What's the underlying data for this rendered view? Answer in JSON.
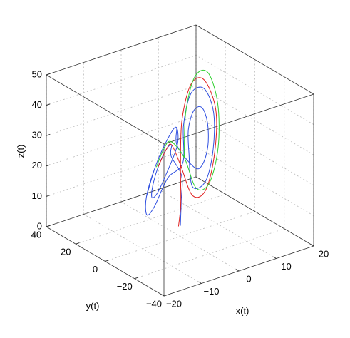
{
  "chart_data": {
    "type": "line3d",
    "xlabel": "x(t)",
    "ylabel": "y(t)",
    "zlabel": "z(t)",
    "xlim": [
      -20,
      20
    ],
    "ylim": [
      -40,
      40
    ],
    "zlim": [
      0,
      50
    ],
    "xticks": [
      {
        "value": -20,
        "label": "−20"
      },
      {
        "value": -10,
        "label": "−10"
      },
      0,
      10,
      20
    ],
    "yticks": [
      {
        "value": -40,
        "label": "−40"
      },
      {
        "value": -20,
        "label": "−20"
      },
      0,
      20,
      40
    ],
    "zticks": [
      0,
      10,
      20,
      30,
      40,
      50
    ],
    "grid": true,
    "series": [
      {
        "color": "#2f4fe0",
        "x": [
          0.5,
          1.5,
          2,
          -2,
          -3.7,
          -8,
          -12.3,
          -14,
          -12.3,
          -8,
          -3.7,
          2,
          -0.9,
          -8,
          -15.1,
          -18,
          -15.1,
          -8,
          -0.9,
          -2,
          0.9,
          8,
          15.1,
          18,
          15.1,
          8,
          0.9,
          2,
          3.7,
          8,
          12.3,
          14,
          12.3,
          8,
          3.7,
          2,
          -0.9,
          -8,
          -15.1,
          -18
        ],
        "y": [
          1,
          3,
          4,
          1,
          -3.7,
          -11,
          -16.5,
          -17,
          -12.3,
          -5,
          0.5,
          7,
          0.1,
          -13,
          -22.2,
          -23,
          -15.9,
          -3,
          6.1,
          -7,
          -0.1,
          13,
          22.2,
          23,
          15.9,
          3,
          -6.1,
          -1,
          3.7,
          11,
          16.5,
          17,
          12.3,
          5,
          -0.5,
          7,
          0.1,
          -13,
          -22.2,
          -23
        ],
        "z": [
          3,
          10,
          18,
          27,
          32.7,
          35,
          32.7,
          27,
          21.3,
          19,
          21.3,
          27,
          36.2,
          40,
          36.2,
          27,
          17.8,
          14,
          17.8,
          27,
          36.2,
          40,
          36.2,
          27,
          17.8,
          14,
          17.8,
          27,
          32.7,
          35,
          32.7,
          27,
          21.3,
          19,
          21.3,
          27,
          36.2,
          40,
          36.2,
          27
        ]
      },
      {
        "color": "#e02020",
        "x": [
          0,
          1,
          -3,
          0.2,
          8,
          15.8,
          19,
          15.8,
          8,
          0.2,
          -3,
          -3.7,
          -8,
          -12.3
        ],
        "y": [
          1,
          2,
          -8,
          -0.8,
          13,
          23.9,
          24,
          16.8,
          3,
          -7.9,
          -8,
          -3.7,
          -11,
          -16.5
        ],
        "z": [
          3,
          10,
          27,
          38.3,
          43,
          38.3,
          27,
          15.7,
          11,
          15.7,
          27,
          32.7,
          35,
          32.7
        ]
      },
      {
        "color": "#30d030",
        "x": [
          -2,
          1.2,
          9,
          16.8,
          19.5,
          16.8,
          9,
          1.2,
          -2,
          -4,
          -9,
          -13
        ],
        "y": [
          -8,
          -0.8,
          13,
          23.9,
          24,
          16.8,
          3,
          -7.9,
          -8,
          -4,
          -12,
          -17
        ],
        "z": [
          29,
          40.3,
          45,
          40.3,
          29,
          17.7,
          13,
          17.7,
          29,
          34,
          36,
          33
        ]
      }
    ]
  }
}
